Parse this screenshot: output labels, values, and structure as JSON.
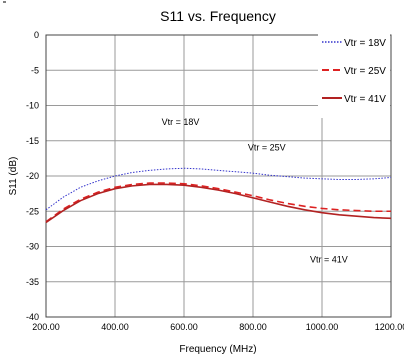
{
  "chart_data": {
    "type": "line",
    "title": "S11 vs. Frequency",
    "xlabel": "Frequency (MHz)",
    "ylabel": "S11 (dB)",
    "xlim": [
      200,
      1200
    ],
    "ylim": [
      -40,
      0
    ],
    "x_ticks": [
      200,
      400,
      600,
      800,
      1000,
      1200
    ],
    "x_tick_labels": [
      "200.00",
      "400.00",
      "600.00",
      "800.00",
      "1000.00",
      "1200.00"
    ],
    "y_ticks": [
      0,
      -5,
      -10,
      -15,
      -20,
      -25,
      -30,
      -35,
      -40
    ],
    "y_tick_labels": [
      "0",
      "-5",
      "-10",
      "-15",
      "-20",
      "-25",
      "-30",
      "-35",
      "-40"
    ],
    "grid": true,
    "legend_position": "top-right",
    "series": [
      {
        "name": "Vtr = 18V",
        "color": "#3333cc",
        "style": "dotted",
        "x": [
          200,
          250,
          300,
          350,
          400,
          450,
          500,
          550,
          600,
          650,
          700,
          750,
          800,
          850,
          900,
          950,
          1000,
          1050,
          1100,
          1150,
          1200
        ],
        "y": [
          -24.8,
          -23.0,
          -21.6,
          -20.7,
          -20.0,
          -19.5,
          -19.2,
          -19.0,
          -18.9,
          -19.0,
          -19.2,
          -19.4,
          -19.6,
          -19.9,
          -20.1,
          -20.3,
          -20.4,
          -20.5,
          -20.5,
          -20.4,
          -20.2
        ]
      },
      {
        "name": "Vtr = 25V",
        "color": "#dd2222",
        "style": "dashed",
        "x": [
          200,
          250,
          300,
          350,
          400,
          450,
          500,
          550,
          600,
          650,
          700,
          750,
          800,
          850,
          900,
          950,
          1000,
          1050,
          1100,
          1150,
          1200
        ],
        "y": [
          -26.5,
          -24.7,
          -23.3,
          -22.3,
          -21.6,
          -21.2,
          -21.0,
          -21.0,
          -21.1,
          -21.4,
          -21.8,
          -22.3,
          -22.8,
          -23.4,
          -23.9,
          -24.3,
          -24.6,
          -24.8,
          -24.9,
          -25.0,
          -25.0
        ]
      },
      {
        "name": "Vtr = 41V",
        "color": "#b22222",
        "style": "solid",
        "x": [
          200,
          250,
          300,
          350,
          400,
          450,
          500,
          550,
          600,
          650,
          700,
          750,
          800,
          850,
          900,
          950,
          1000,
          1050,
          1100,
          1150,
          1200
        ],
        "y": [
          -26.6,
          -24.9,
          -23.5,
          -22.5,
          -21.8,
          -21.4,
          -21.2,
          -21.2,
          -21.3,
          -21.6,
          -22.0,
          -22.5,
          -23.1,
          -23.7,
          -24.3,
          -24.8,
          -25.2,
          -25.5,
          -25.7,
          -25.9,
          -26.0
        ]
      }
    ],
    "annotations": [
      {
        "text": "Vtr = 18V",
        "x": 590,
        "y": -12.8
      },
      {
        "text": "Vtr = 25V",
        "x": 840,
        "y": -16.4
      },
      {
        "text": "Vtr = 41V",
        "x": 1020,
        "y": -32.3
      }
    ]
  }
}
